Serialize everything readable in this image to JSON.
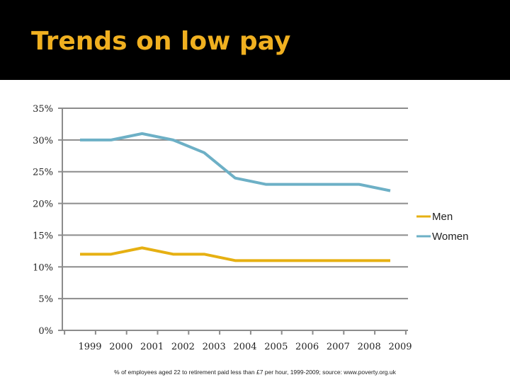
{
  "slide": {
    "title": "Trends on low pay",
    "footnote": "% of employees aged 22 to retirement paid less than £7 per hour, 1999-2009; source: www.poverty.org.uk"
  },
  "chart_data": {
    "type": "line",
    "categories": [
      "1999",
      "2000",
      "2001",
      "2002",
      "2003",
      "2004",
      "2005",
      "2006",
      "2007",
      "2008",
      "2009"
    ],
    "series": [
      {
        "name": "Men",
        "color": "#e6b012",
        "values": [
          12,
          12,
          13,
          12,
          12,
          11,
          11,
          11,
          11,
          11,
          11
        ]
      },
      {
        "name": "Women",
        "color": "#6db0c6",
        "values": [
          30,
          30,
          31,
          30,
          28,
          24,
          23,
          23,
          23,
          23,
          22
        ]
      }
    ],
    "yticks": [
      "0%",
      "5%",
      "10%",
      "15%",
      "20%",
      "25%",
      "30%",
      "35%"
    ],
    "ylim": [
      0,
      35
    ],
    "ytick_values": [
      0,
      5,
      10,
      15,
      20,
      25,
      30,
      35
    ],
    "grid": true,
    "legend": "right"
  }
}
